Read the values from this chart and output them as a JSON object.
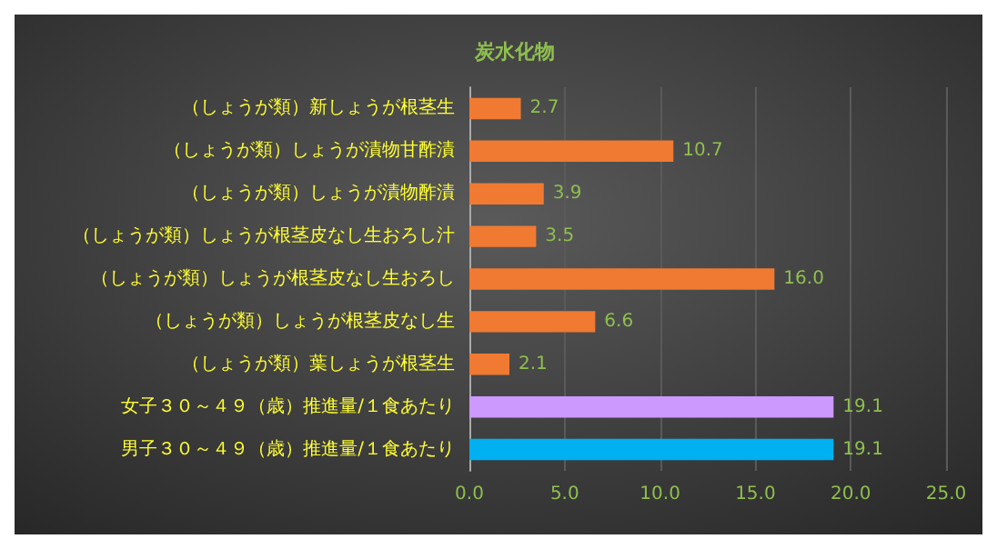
{
  "chart_data": {
    "type": "bar",
    "orientation": "horizontal",
    "title": "炭水化物",
    "categories": [
      "（しょうが類）新しょうが根茎生",
      "（しょうが類）しょうが漬物甘酢漬",
      "（しょうが類）しょうが漬物酢漬",
      "（しょうが類）しょうが根茎皮なし生おろし汁",
      "（しょうが類）しょうが根茎皮なし生おろし",
      "（しょうが類）しょうが根茎皮なし生",
      "（しょうが類）葉しょうが根茎生",
      "女子３０～４９（歳）推進量/１食あたり",
      "男子３０～４９（歳）推進量/１食あたり"
    ],
    "values": [
      2.7,
      10.7,
      3.9,
      3.5,
      16.0,
      6.6,
      2.1,
      19.1,
      19.1
    ],
    "value_labels": [
      "2.7",
      "10.7",
      "3.9",
      "3.5",
      "16.0",
      "6.6",
      "2.1",
      "19.1",
      "19.1"
    ],
    "colors": [
      "#f07a32",
      "#f07a32",
      "#f07a32",
      "#f07a32",
      "#f07a32",
      "#f07a32",
      "#f07a32",
      "#cc99ff",
      "#00b0f0"
    ],
    "xlim": [
      0,
      25
    ],
    "xticks": [
      {
        "value": 0,
        "label": "0.0"
      },
      {
        "value": 5,
        "label": "5.0"
      },
      {
        "value": 10,
        "label": "10.0"
      },
      {
        "value": 15,
        "label": "15.0"
      },
      {
        "value": 20,
        "label": "20.0"
      },
      {
        "value": 25,
        "label": "25.0"
      }
    ],
    "grid": "x"
  }
}
